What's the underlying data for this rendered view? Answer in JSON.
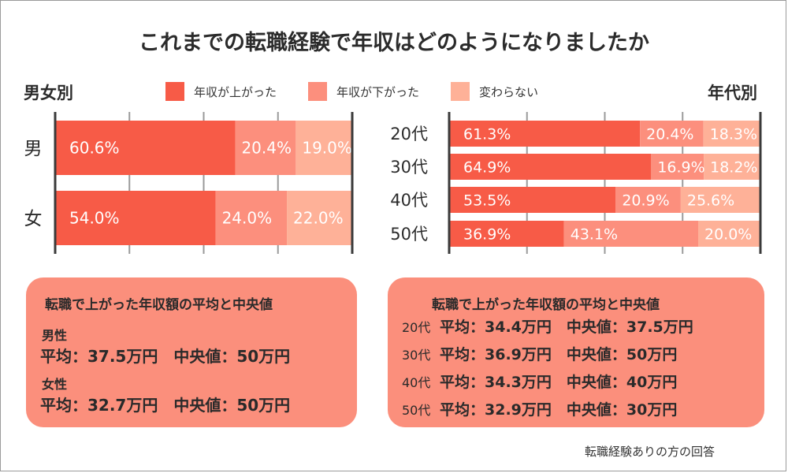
{
  "title": "これまでの転職経験で年収はどのようになりましたか",
  "labels": {
    "left_section": "男女別",
    "right_section": "年代別"
  },
  "legend": [
    {
      "label": "年収が上がった",
      "color": "#f75b47"
    },
    {
      "label": "年収が下がった",
      "color": "#fc8f7d"
    },
    {
      "label": "変わらない",
      "color": "#feb198"
    }
  ],
  "chart_data": [
    {
      "type": "bar",
      "orientation": "horizontal",
      "stacked": true,
      "title": "男女別",
      "categories": [
        "男",
        "女"
      ],
      "series": [
        {
          "name": "年収が上がった",
          "values": [
            60.6,
            54.0
          ],
          "labels": [
            "60.6%",
            "54.0%"
          ]
        },
        {
          "name": "年収が下がった",
          "values": [
            20.4,
            24.0
          ],
          "labels": [
            "20.4%",
            "24.0%"
          ]
        },
        {
          "name": "変わらない",
          "values": [
            19.0,
            22.0
          ],
          "labels": [
            "19.0%",
            "22.0%"
          ]
        }
      ],
      "xlim": [
        0,
        100
      ],
      "grid": true
    },
    {
      "type": "bar",
      "orientation": "horizontal",
      "stacked": true,
      "title": "年代別",
      "categories": [
        "20代",
        "30代",
        "40代",
        "50代"
      ],
      "series": [
        {
          "name": "年収が上がった",
          "values": [
            61.3,
            64.9,
            53.5,
            36.9
          ],
          "labels": [
            "61.3%",
            "64.9%",
            "53.5%",
            "36.9%"
          ]
        },
        {
          "name": "年収が下がった",
          "values": [
            20.4,
            16.9,
            20.9,
            43.1
          ],
          "labels": [
            "20.4%",
            "16.9%",
            "20.9%",
            "43.1%"
          ]
        },
        {
          "name": "変わらない",
          "values": [
            18.3,
            18.2,
            25.6,
            20.0
          ],
          "labels": [
            "18.3%",
            "18.2%",
            "25.6%",
            "20.0%"
          ]
        }
      ],
      "xlim": [
        0,
        100
      ],
      "grid": true
    }
  ],
  "summary_gender": {
    "title": "転職で上がった年収額の平均と中央値",
    "male_label": "男性",
    "male_text": "平均：37.5万円　中央値：50万円",
    "female_label": "女性",
    "female_text": "平均：32.7万円　中央値：50万円"
  },
  "summary_age": {
    "title": "転職で上がった年収額の平均と中央値",
    "rows": [
      {
        "label": "20代",
        "text": "平均：34.4万円　中央値：37.5万円"
      },
      {
        "label": "30代",
        "text": "平均：36.9万円　中央値：50万円"
      },
      {
        "label": "40代",
        "text": "平均：34.3万円　中央値：40万円"
      },
      {
        "label": "50代",
        "text": "平均：32.9万円　中央値：30万円"
      }
    ]
  },
  "footnote": "転職経験ありの方の回答",
  "colors": {
    "summary_bg": "#fb8f7c",
    "axis": "#3a3a3a",
    "grid": "#9a9a9a"
  }
}
